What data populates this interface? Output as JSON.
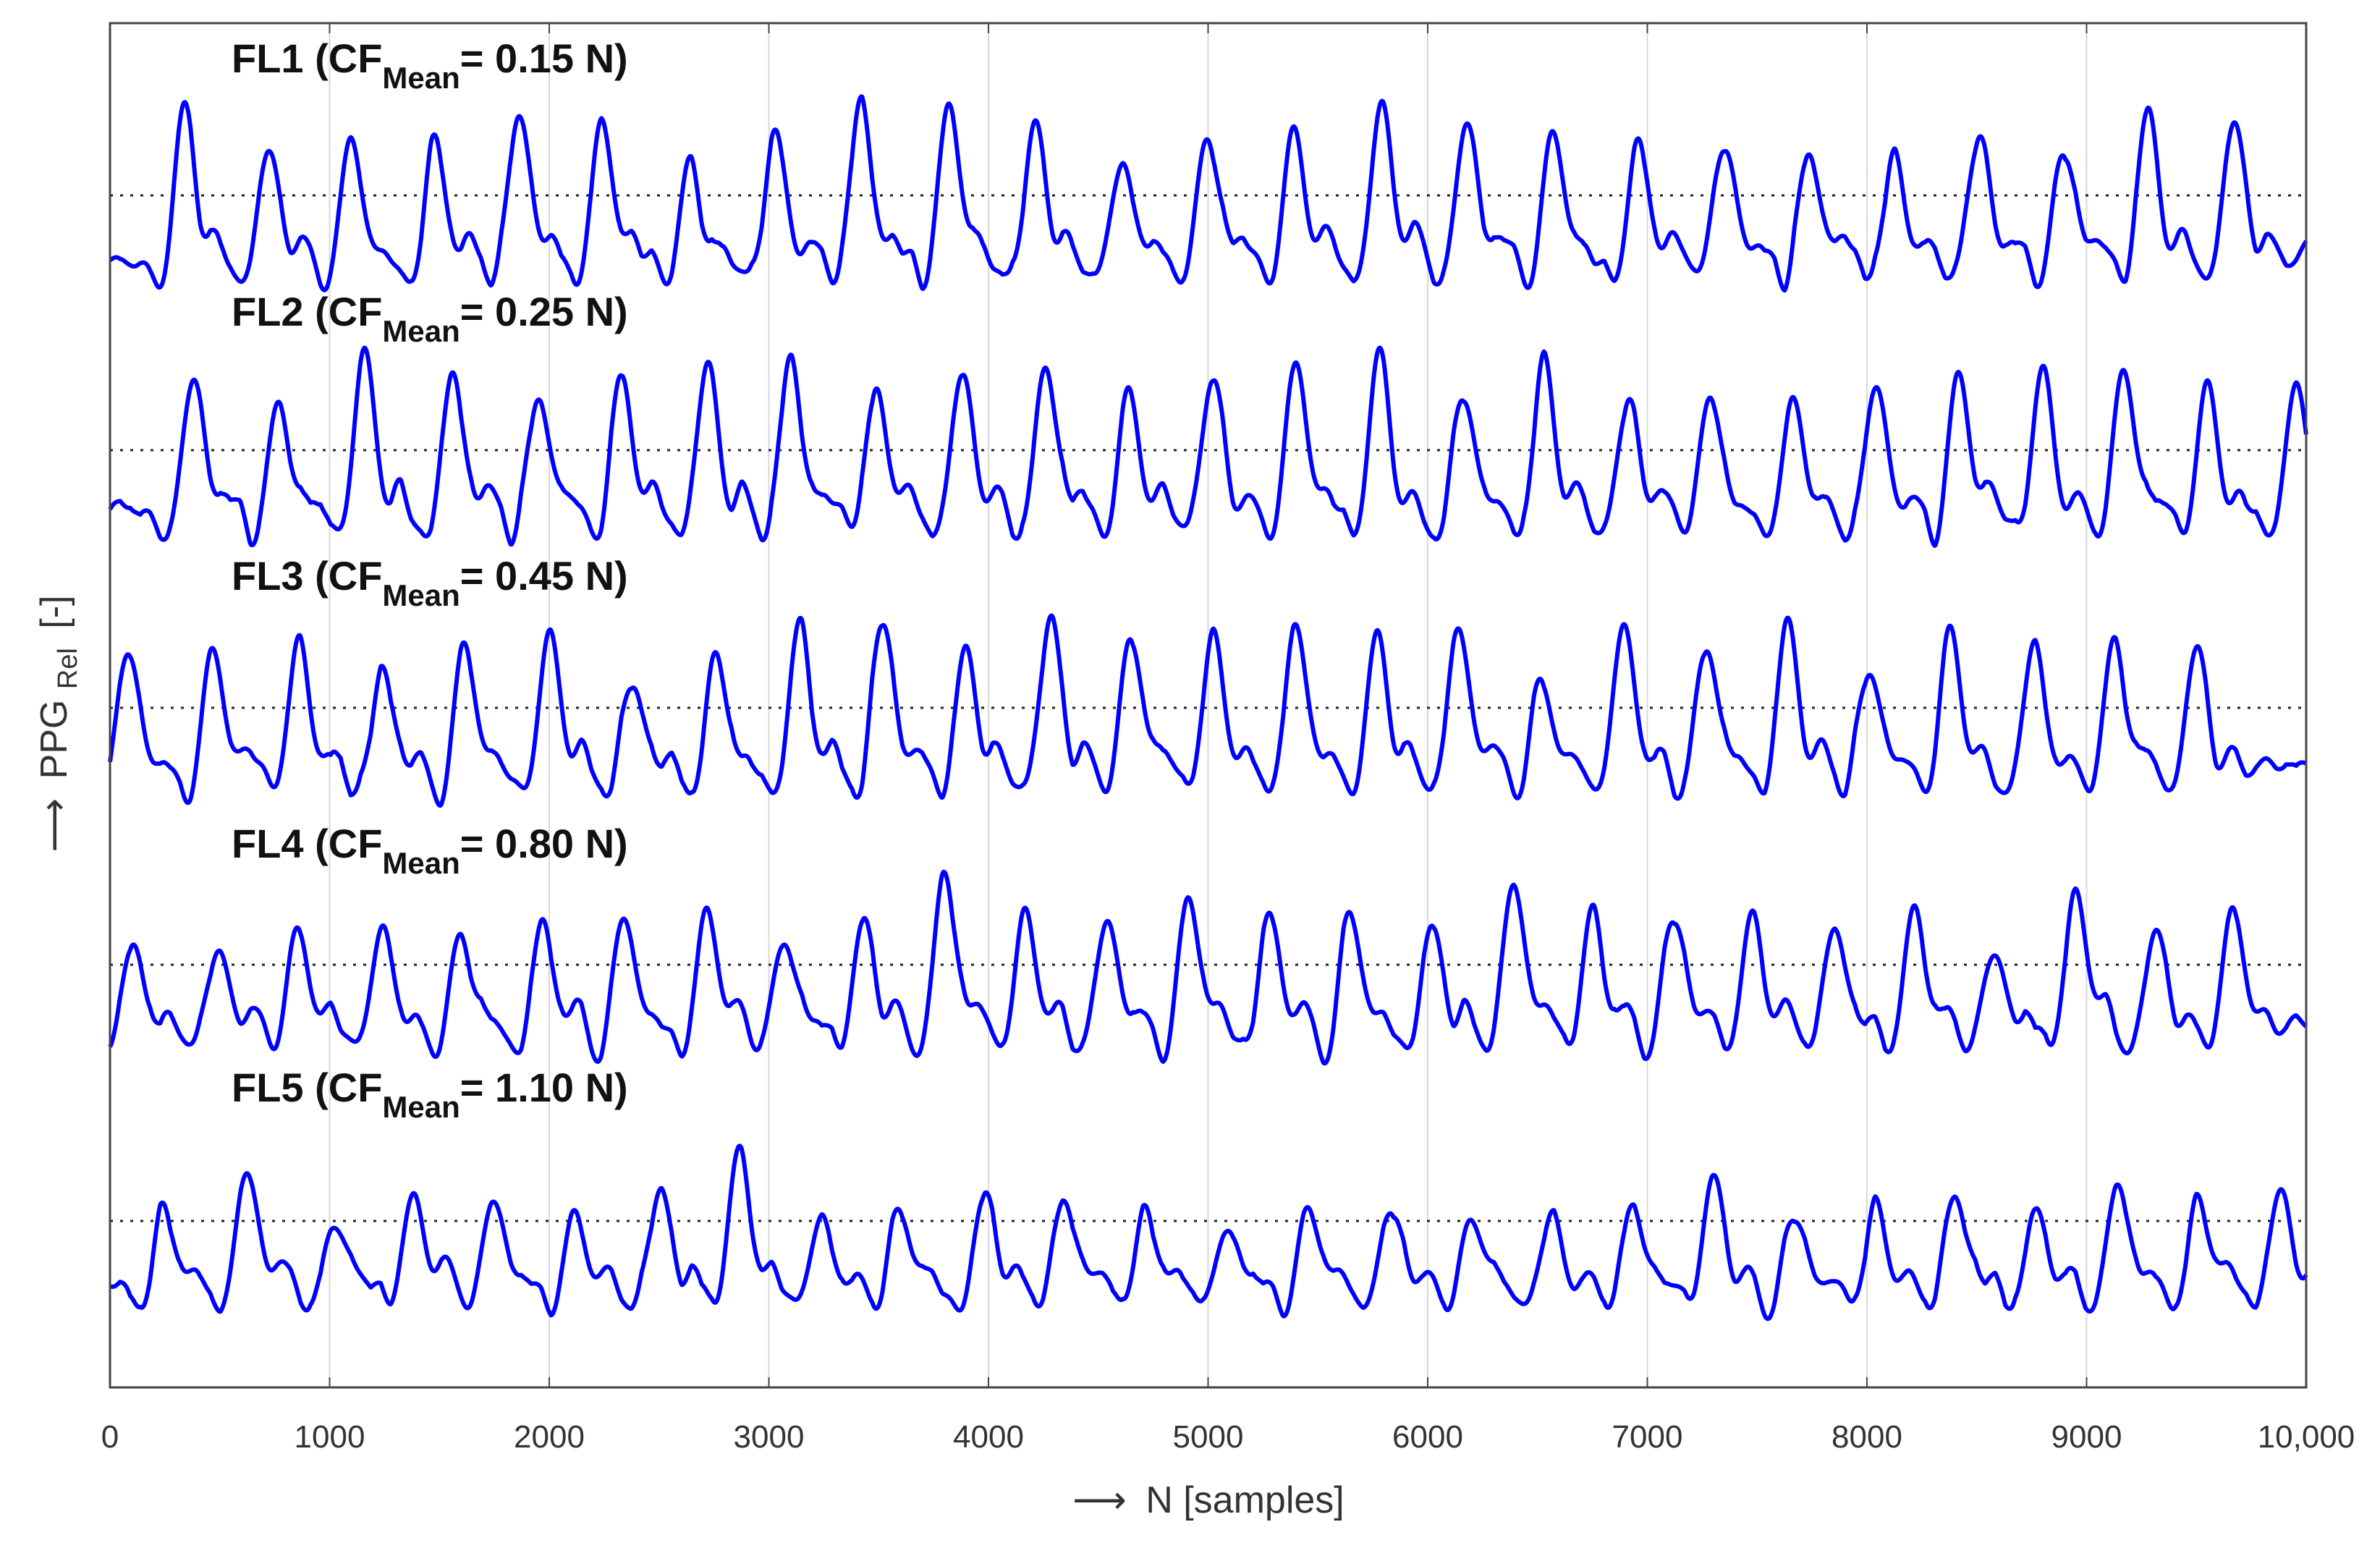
{
  "chart_data": {
    "type": "line",
    "xlabel_arrow": "⟶",
    "xlabel": "N [samples]",
    "ylabel_arrow": "⟶",
    "ylabel_main": "PPG",
    "ylabel_sub": "Rel",
    "ylabel_unit": "[-]",
    "xlim": [
      0,
      10000
    ],
    "x_ticks": [
      0,
      1000,
      2000,
      3000,
      4000,
      5000,
      6000,
      7000,
      8000,
      9000,
      10000
    ],
    "x_tick_labels": [
      "0",
      "1000",
      "2000",
      "3000",
      "4000",
      "5000",
      "6000",
      "7000",
      "8000",
      "9000",
      "10,000"
    ],
    "y_tick_labels": [],
    "grid": "vertical",
    "line_color": "#0000ff",
    "baseline_style": "dotted",
    "series": [
      {
        "label_prefix": "FL1 (CF",
        "label_sub": "Mean",
        "label_suffix": "= 0.15 N)",
        "peaks": [
          340,
          720,
          1100,
          1480,
          1860,
          2240,
          2640,
          3030,
          3420,
          3820,
          4210,
          4610,
          5000,
          5390,
          5790,
          6180,
          6570,
          6960,
          7350,
          7740,
          8120,
          8510,
          8900,
          9280,
          9670
        ],
        "peak_heights": [
          0.92,
          0.65,
          0.78,
          0.72,
          0.92,
          0.82,
          0.58,
          0.8,
          1.0,
          0.92,
          0.82,
          0.55,
          0.75,
          0.82,
          0.95,
          0.82,
          0.8,
          0.72,
          0.7,
          0.7,
          0.6,
          0.78,
          0.68,
          0.92,
          0.8
        ]
      },
      {
        "label_prefix": "FL2 (CF",
        "label_sub": "Mean",
        "label_suffix": "= 0.25 N)",
        "peaks": [
          380,
          770,
          1160,
          1560,
          1950,
          2330,
          2720,
          3100,
          3490,
          3880,
          4260,
          4640,
          5020,
          5400,
          5780,
          6160,
          6530,
          6910,
          7290,
          7660,
          8040,
          8420,
          8800,
          9170,
          9550,
          9950
        ],
        "peak_heights": [
          0.85,
          0.65,
          0.95,
          0.88,
          0.72,
          0.85,
          0.92,
          1.0,
          0.78,
          0.88,
          0.98,
          0.75,
          0.88,
          0.98,
          0.95,
          0.75,
          0.95,
          0.72,
          0.75,
          0.72,
          0.85,
          0.82,
          0.9,
          0.95,
          0.82,
          0.75
        ]
      },
      {
        "label_prefix": "FL3 (CF",
        "label_sub": "Mean",
        "label_suffix": "= 0.45 N)",
        "peaks": [
          80,
          470,
          860,
          1240,
          1620,
          2000,
          2380,
          2760,
          3140,
          3520,
          3900,
          4280,
          4650,
          5020,
          5400,
          5770,
          6140,
          6520,
          6890,
          7270,
          7640,
          8010,
          8380,
          8760,
          9130,
          9500
        ],
        "peak_heights": [
          0.72,
          0.75,
          0.75,
          0.62,
          0.78,
          0.8,
          0.6,
          0.72,
          0.88,
          0.95,
          0.75,
          0.95,
          0.85,
          0.82,
          0.9,
          0.88,
          0.88,
          0.55,
          0.88,
          0.8,
          0.88,
          0.65,
          0.82,
          0.78,
          0.8,
          0.72
        ]
      },
      {
        "label_prefix": "FL4 (CF",
        "label_sub": "Mean",
        "label_suffix": "= 0.80 N)",
        "peaks": [
          100,
          490,
          860,
          1240,
          1600,
          1970,
          2340,
          2720,
          3070,
          3430,
          3800,
          4170,
          4540,
          4910,
          5280,
          5650,
          6020,
          6390,
          6750,
          7120,
          7480,
          7850,
          8220,
          8580,
          8950,
          9310,
          9670
        ],
        "peak_heights": [
          0.48,
          0.52,
          0.62,
          0.62,
          0.55,
          0.65,
          0.7,
          0.72,
          0.58,
          0.65,
          1.0,
          0.72,
          0.72,
          0.82,
          0.72,
          0.72,
          0.62,
          0.88,
          0.72,
          0.7,
          0.68,
          0.62,
          0.72,
          0.48,
          0.82,
          0.62,
          0.75
        ]
      },
      {
        "label_prefix": "FL5 (CF",
        "label_sub": "Mean",
        "label_suffix": "= 1.10 N)",
        "peaks": [
          250,
          620,
          1020,
          1380,
          1750,
          2120,
          2500,
          2870,
          3240,
          3600,
          3980,
          4350,
          4720,
          5090,
          5460,
          5830,
          6200,
          6560,
          6930,
          7300,
          7670,
          8040,
          8400,
          8770,
          9140,
          9510,
          9880
        ],
        "peak_heights": [
          0.45,
          0.65,
          0.35,
          0.55,
          0.5,
          0.42,
          0.55,
          0.8,
          0.38,
          0.48,
          0.55,
          0.52,
          0.42,
          0.38,
          0.42,
          0.45,
          0.42,
          0.4,
          0.48,
          0.68,
          0.45,
          0.45,
          0.55,
          0.45,
          0.62,
          0.5,
          0.55
        ]
      }
    ]
  }
}
